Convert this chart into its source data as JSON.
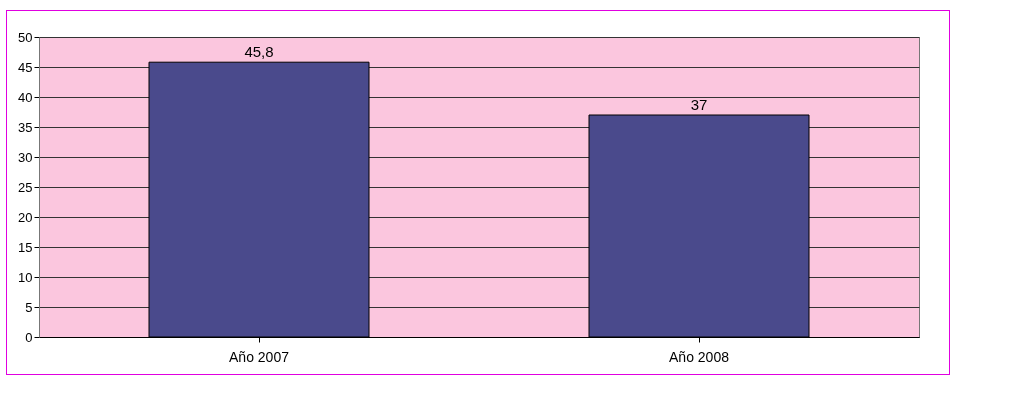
{
  "chart_data": {
    "type": "bar",
    "categories": [
      "Año 2007",
      "Año 2008"
    ],
    "values": [
      45.8,
      37
    ],
    "value_labels": [
      "45,8",
      "37"
    ],
    "color": "#4a4a8c",
    "ylim": [
      0,
      50
    ],
    "yticks": [
      0,
      5,
      10,
      15,
      20,
      25,
      30,
      35,
      40,
      45,
      50
    ],
    "grid": "y"
  }
}
